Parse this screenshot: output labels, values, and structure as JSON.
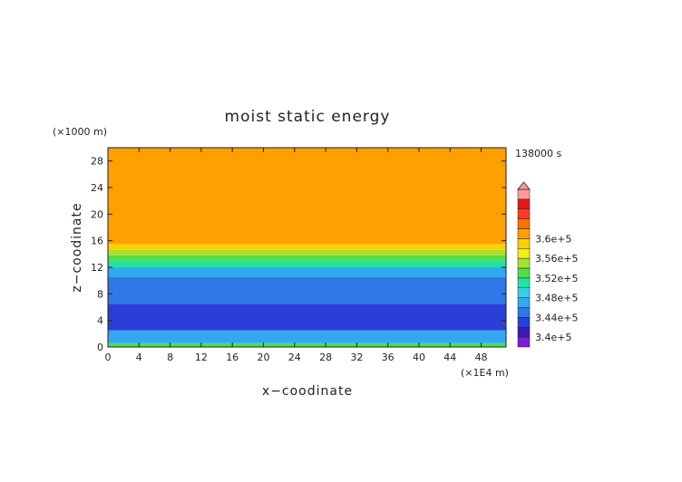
{
  "chart_data": {
    "type": "heatmap",
    "title": "moist static energy",
    "xlabel": "x−coodinate",
    "ylabel": "z−coodinate",
    "x_unit": "(×1E4 m)",
    "y_unit": "(×1000 m)",
    "time_label": "138000 s",
    "xlim": [
      0,
      51.2
    ],
    "ylim": [
      0,
      30
    ],
    "x_ticks": [
      "0",
      "4",
      "8",
      "12",
      "16",
      "20",
      "24",
      "28",
      "32",
      "36",
      "40",
      "44",
      "48"
    ],
    "y_ticks": [
      "0",
      "4",
      "8",
      "12",
      "16",
      "20",
      "24",
      "28"
    ],
    "colorbar": {
      "labels": [
        "3.4e+5",
        "3.44e+5",
        "3.48e+5",
        "3.52e+5",
        "3.56e+5",
        "3.6e+5"
      ],
      "label_values": [
        340000,
        344000,
        348000,
        352000,
        356000,
        360000
      ],
      "levels_min": 338000,
      "levels_step": 2000,
      "colors": [
        "#7a1fd0",
        "#3b1cb0",
        "#2a3fd8",
        "#2f78e8",
        "#33a8f0",
        "#35d0e8",
        "#22e0a8",
        "#4ee04a",
        "#a8e030",
        "#f0f018",
        "#ffd000",
        "#ffa000",
        "#ff7000",
        "#ff3a20",
        "#e81818",
        "#ff9a9a"
      ],
      "extend": "max"
    },
    "layers": [
      {
        "z_range": [
          0,
          0.6
        ],
        "value": 352500
      },
      {
        "z_range": [
          0.6,
          2.5
        ],
        "value": 346000
      },
      {
        "z_range": [
          2.5,
          6.5
        ],
        "value": 342000
      },
      {
        "z_range": [
          6.5,
          10.5
        ],
        "value": 345500
      },
      {
        "z_range": [
          10.5,
          12.0
        ],
        "value": 347500
      },
      {
        "z_range": [
          12.0,
          13.0
        ],
        "value": 350000
      },
      {
        "z_range": [
          13.0,
          13.8
        ],
        "value": 352500
      },
      {
        "z_range": [
          13.8,
          14.6
        ],
        "value": 355000
      },
      {
        "z_range": [
          14.6,
          15.5
        ],
        "value": 359000
      },
      {
        "z_range": [
          15.5,
          30
        ],
        "value": 361000
      }
    ]
  }
}
